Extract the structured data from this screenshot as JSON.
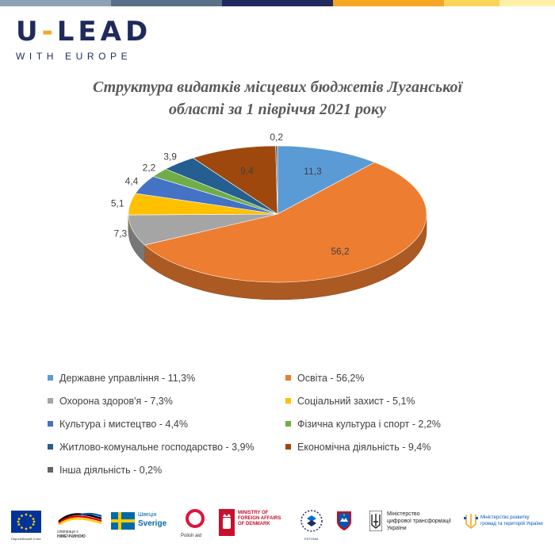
{
  "brand": {
    "name_left": "U",
    "name_dash": "-",
    "name_right": "LEAD",
    "subtitle": "WITH EUROPE"
  },
  "topbar_colors": [
    "#8ea2b4",
    "#5a6f88",
    "#1f2b5c",
    "#f5a623",
    "#fbd45a",
    "#fdf0a8"
  ],
  "chart_data": {
    "type": "pie",
    "title_line1": "Структура видатків місцевих бюджетів Луганської",
    "title_line2": "області за 1 півріччя 2021 року",
    "slices": [
      {
        "label": "Державне управління - 11,3%",
        "value": 11.3,
        "data_label": "11,3",
        "color": "#5b9bd5"
      },
      {
        "label": "Освіта - 56,2%",
        "value": 56.2,
        "data_label": "56,2",
        "color": "#ed7d31"
      },
      {
        "label": "Охорона здоров'я - 7,3%",
        "value": 7.3,
        "data_label": "7,3",
        "color": "#a5a5a5"
      },
      {
        "label": "Соціальний захист - 5,1%",
        "value": 5.1,
        "data_label": "5,1",
        "color": "#ffc000"
      },
      {
        "label": "Культура і мистецтво - 4,4%",
        "value": 4.4,
        "data_label": "4,4",
        "color": "#4472c4"
      },
      {
        "label": "Фізична культура і спорт - 2,2%",
        "value": 2.2,
        "data_label": "2,2",
        "color": "#70ad47"
      },
      {
        "label": "Житлово-комунальне господарство - 3,9%",
        "value": 3.9,
        "data_label": "3,9",
        "color": "#255e91"
      },
      {
        "label": "Економічна діяльність - 9,4%",
        "value": 9.4,
        "data_label": "9,4",
        "color": "#9e480e"
      },
      {
        "label": "Інша діяльність - 0,2%",
        "value": 0.2,
        "data_label": "0,2",
        "color": "#636363"
      }
    ],
    "legend_placement": "bottom"
  },
  "logos": {
    "eu": "Європейський Союз",
    "germany_line1": "співпраця з",
    "germany_line2": "НІМЕЧЧИНОЮ",
    "sweden_line1": "Швеція",
    "sweden_line2": "Sverige",
    "polish_aid": "Polish aid",
    "denmark_line1": "MINISTRY OF",
    "denmark_line2": "FOREIGN AFFAIRS",
    "denmark_line3": "OF DENMARK",
    "estonia": "ESTONIA",
    "ministry_digital_line1": "Міністерство",
    "ministry_digital_line2": "цифрової трансформації",
    "ministry_digital_line3": "України",
    "ministry_regions_line1": "Міністерство розвитку",
    "ministry_regions_line2": "громад та територій України"
  }
}
